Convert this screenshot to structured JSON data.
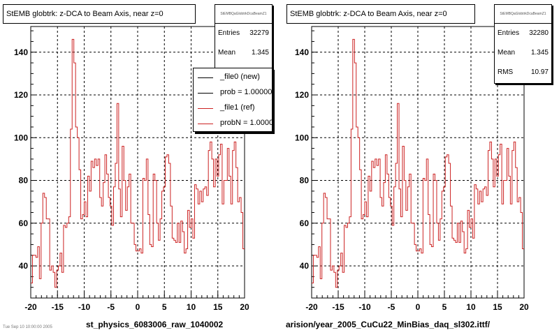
{
  "chart_data": [
    {
      "type": "histogram",
      "title": "StEMB globtrk: z-DCA to Beam Axis, near z=0",
      "xlabel": "st_physics_6083006_raw_1040002",
      "ylabel": "",
      "xlim": [
        -20,
        20
      ],
      "ylim": [
        25,
        152
      ],
      "grid": true,
      "xticks": [
        -20,
        -15,
        -10,
        -5,
        0,
        5,
        10,
        15,
        20
      ],
      "yticks": [
        40,
        60,
        80,
        100,
        120,
        140
      ],
      "series": [
        {
          "color": "#cc2222",
          "bin_edges": [
            -20,
            20
          ],
          "values": [
            32,
            45,
            45,
            44,
            49,
            34,
            60,
            74,
            72,
            62,
            62,
            38,
            40,
            37,
            30,
            38,
            40,
            46,
            37,
            59,
            58,
            60,
            63,
            104,
            146,
            135,
            105,
            100,
            85,
            62,
            64,
            70,
            63,
            82,
            75,
            89,
            86,
            90,
            87,
            90,
            72,
            68,
            79,
            92,
            83,
            72,
            68,
            59,
            77,
            88,
            116,
            76,
            63,
            96,
            80,
            66,
            77,
            83,
            60,
            60,
            50,
            47,
            47,
            48,
            46,
            81,
            80,
            90,
            64,
            50,
            49,
            83,
            80,
            60,
            52,
            62,
            75,
            77,
            91,
            92,
            88,
            68,
            53,
            52,
            51,
            60,
            51,
            61,
            56,
            46,
            48,
            66,
            58,
            62,
            53,
            78,
            76,
            69,
            75,
            70,
            76,
            77,
            73,
            94,
            98,
            90,
            77,
            90,
            82,
            92,
            97,
            69,
            80,
            80,
            95,
            82,
            69,
            94,
            98,
            86,
            70,
            72,
            65,
            48
          ]
        }
      ],
      "stats": {
        "name": "StEMBQaGlobtrkDcaBeamZ1",
        "entries": "32279",
        "mean": "1.345"
      },
      "legend": [
        {
          "label": "_file0 (new)",
          "color": "#000000"
        },
        {
          "label": "prob = 1.000000",
          "color": "#000000"
        },
        {
          "label": "_file1 (ref)",
          "color": "#cc2222"
        },
        {
          "label": "probN = 1.000000",
          "color": "#cc2222"
        }
      ]
    },
    {
      "type": "histogram",
      "title": "StEMB globtrk: z-DCA to Beam Axis, near z=0",
      "xlabel": "arision/year_2005_CuCu22_MinBias_daq_sl302.ittf/",
      "ylabel": "",
      "xlim": [
        -20,
        20
      ],
      "ylim": [
        25,
        152
      ],
      "grid": true,
      "xticks": [
        -20,
        -15,
        -10,
        -5,
        0,
        5,
        10,
        15,
        20
      ],
      "yticks": [
        40,
        60,
        80,
        100,
        120,
        140
      ],
      "series": [
        {
          "color": "#cc2222",
          "bin_edges": [
            -20,
            20
          ],
          "values": [
            32,
            45,
            45,
            44,
            49,
            34,
            60,
            74,
            72,
            62,
            62,
            38,
            40,
            37,
            30,
            38,
            40,
            46,
            37,
            59,
            58,
            60,
            63,
            104,
            146,
            135,
            105,
            100,
            85,
            62,
            64,
            70,
            63,
            82,
            75,
            89,
            86,
            90,
            87,
            90,
            72,
            68,
            79,
            92,
            83,
            72,
            68,
            59,
            77,
            88,
            116,
            76,
            63,
            96,
            80,
            66,
            77,
            83,
            60,
            60,
            50,
            47,
            47,
            48,
            46,
            81,
            80,
            90,
            64,
            50,
            49,
            83,
            80,
            60,
            52,
            62,
            75,
            77,
            91,
            92,
            88,
            68,
            53,
            52,
            51,
            60,
            51,
            61,
            56,
            46,
            48,
            66,
            58,
            62,
            53,
            78,
            76,
            69,
            75,
            70,
            76,
            77,
            73,
            94,
            98,
            90,
            77,
            90,
            82,
            92,
            97,
            69,
            80,
            80,
            95,
            82,
            69,
            94,
            98,
            86,
            70,
            72,
            65,
            48
          ]
        }
      ],
      "stats": {
        "name": "StEMBQaGlobtrkDcaBeamZ1",
        "entries": "32280",
        "mean": "1.345",
        "rms": "10.97"
      }
    }
  ],
  "labels": {
    "entries": "Entries",
    "mean": "Mean",
    "rms": "RMS"
  },
  "footer": {
    "text": "Tue Sep 10 10:00:00 2005"
  }
}
